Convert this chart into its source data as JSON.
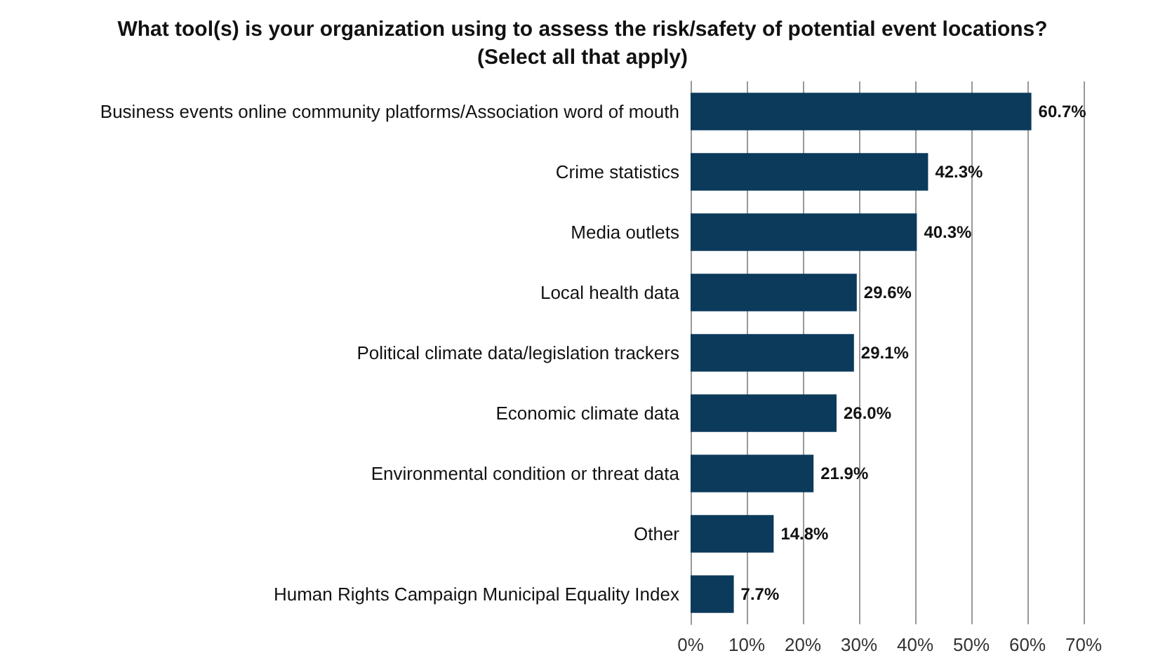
{
  "chart_data": {
    "type": "bar",
    "orientation": "horizontal",
    "title": "What tool(s) is your organization using to assess the risk/safety of potential event locations?\n(Select all that apply)",
    "categories": [
      "Business events online community platforms/Association word of mouth",
      "Crime statistics",
      "Media outlets",
      "Local health data",
      "Political climate data/legislation trackers",
      "Economic climate data",
      "Environmental condition or threat data",
      "Other",
      "Human Rights Campaign Municipal Equality Index"
    ],
    "values": [
      60.7,
      42.3,
      40.3,
      29.6,
      29.1,
      26.0,
      21.9,
      14.8,
      7.7
    ],
    "value_labels": [
      "60.7%",
      "42.3%",
      "40.3%",
      "29.6%",
      "29.1%",
      "26.0%",
      "21.9%",
      "14.8%",
      "7.7%"
    ],
    "color": "#0b3a5b",
    "xlim": [
      0,
      70
    ],
    "xticks": [
      {
        "value": 0,
        "label": "0%"
      },
      {
        "value": 10,
        "label": "10%"
      },
      {
        "value": 20,
        "label": "20%"
      },
      {
        "value": 30,
        "label": "30%"
      },
      {
        "value": 40,
        "label": "40%"
      },
      {
        "value": 50,
        "label": "50%"
      },
      {
        "value": 60,
        "label": "60%"
      },
      {
        "value": 70,
        "label": "70%"
      }
    ],
    "grid": "x"
  }
}
